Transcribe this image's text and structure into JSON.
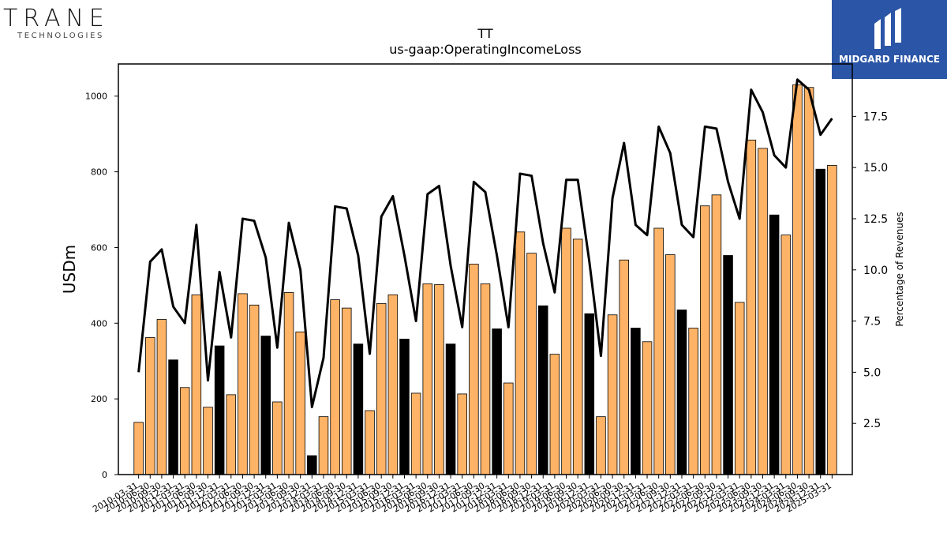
{
  "logos": {
    "left_main": "TRANE",
    "left_sub": "TECHNOLOGIES",
    "right_text": "MIDGARD FINANCE"
  },
  "colors": {
    "bar_orange": "#ffb366",
    "bar_black": "#000000",
    "line": "#000000",
    "brand_blue": "#2b55a6"
  },
  "chart_data": {
    "type": "bar",
    "title": "TT",
    "subtitle": "us-gaap:OperatingIncomeLoss",
    "ylabel": "USDm",
    "y2label": "Percentage of Revenues",
    "ylim": [
      0,
      1085
    ],
    "y2lim": [
      0,
      20.06
    ],
    "yticks": [
      0,
      200,
      400,
      600,
      800,
      1000
    ],
    "y2ticks": [
      2.5,
      5.0,
      7.5,
      10.0,
      12.5,
      15.0,
      17.5
    ],
    "x_labels": [
      "2010-03-31",
      "2010-06-30",
      "2010-09-30",
      "2010-12-31",
      "2011-03-31",
      "2011-06-30",
      "2011-09-30",
      "2011-12-31",
      "2012-03-31",
      "2012-06-30",
      "2012-09-30",
      "2012-12-31",
      "2013-03-31",
      "2013-06-30",
      "2013-09-30",
      "2013-12-31",
      "2014-03-31",
      "2014-06-30",
      "2014-09-30",
      "2014-12-31",
      "2015-03-31",
      "2015-06-30",
      "2015-09-30",
      "2015-12-31",
      "2016-03-31",
      "2016-06-30",
      "2016-09-30",
      "2016-12-31",
      "2017-03-31",
      "2017-06-30",
      "2017-09-30",
      "2017-12-31",
      "2018-03-31",
      "2018-06-30",
      "2018-09-30",
      "2018-12-31",
      "2019-03-31",
      "2019-06-30",
      "2019-09-30",
      "2019-12-31",
      "2020-03-31",
      "2020-06-30",
      "2020-09-30",
      "2020-12-31",
      "2021-03-31",
      "2021-06-30",
      "2021-09-30",
      "2021-12-31",
      "2022-03-31",
      "2022-06-30",
      "2022-09-30",
      "2022-12-31",
      "2023-03-31",
      "2023-06-30",
      "2023-09-30",
      "2023-12-31",
      "2024-03-31",
      "2024-06-30",
      "2024-09-30",
      "2024-12-31",
      "2025-03-31"
    ],
    "series": [
      {
        "kind": "bar",
        "values": [
          138,
          362,
          410,
          303,
          230,
          475,
          178,
          340,
          211,
          478,
          448,
          366,
          192,
          481,
          377,
          50,
          153,
          462,
          440,
          345,
          169,
          452,
          475,
          358,
          215,
          504,
          502,
          345,
          213,
          556,
          504,
          385,
          242,
          641,
          585,
          446,
          318,
          651,
          622,
          425,
          153,
          422,
          567,
          387,
          351,
          651,
          581,
          435,
          387,
          710,
          739,
          579,
          455,
          884,
          862,
          686,
          633,
          1030,
          1023,
          807,
          817
        ],
        "highlight": [
          false,
          false,
          false,
          true,
          false,
          false,
          false,
          true,
          false,
          false,
          false,
          true,
          false,
          false,
          false,
          true,
          false,
          false,
          false,
          true,
          false,
          false,
          false,
          true,
          false,
          false,
          false,
          true,
          false,
          false,
          false,
          true,
          false,
          false,
          false,
          true,
          false,
          false,
          false,
          true,
          false,
          false,
          false,
          true,
          false,
          false,
          false,
          true,
          false,
          false,
          false,
          true,
          false,
          false,
          false,
          true,
          false,
          false,
          false,
          true,
          false
        ]
      },
      {
        "kind": "line",
        "axis": "right",
        "values": [
          5.0,
          10.4,
          11.0,
          8.2,
          7.4,
          12.2,
          4.6,
          9.9,
          6.7,
          12.5,
          12.4,
          10.6,
          6.2,
          12.3,
          10.0,
          3.3,
          5.7,
          13.1,
          13.0,
          10.7,
          5.9,
          12.6,
          13.6,
          10.7,
          7.5,
          13.7,
          14.1,
          10.2,
          7.2,
          14.3,
          13.8,
          10.7,
          7.2,
          14.7,
          14.6,
          11.3,
          8.9,
          14.4,
          14.4,
          10.4,
          5.8,
          13.5,
          16.2,
          12.2,
          11.7,
          17.0,
          15.7,
          12.2,
          11.6,
          17.0,
          16.9,
          14.3,
          12.5,
          18.8,
          17.7,
          15.6,
          15.0,
          19.3,
          18.8,
          16.6,
          17.4
        ]
      }
    ],
    "grid": false
  }
}
